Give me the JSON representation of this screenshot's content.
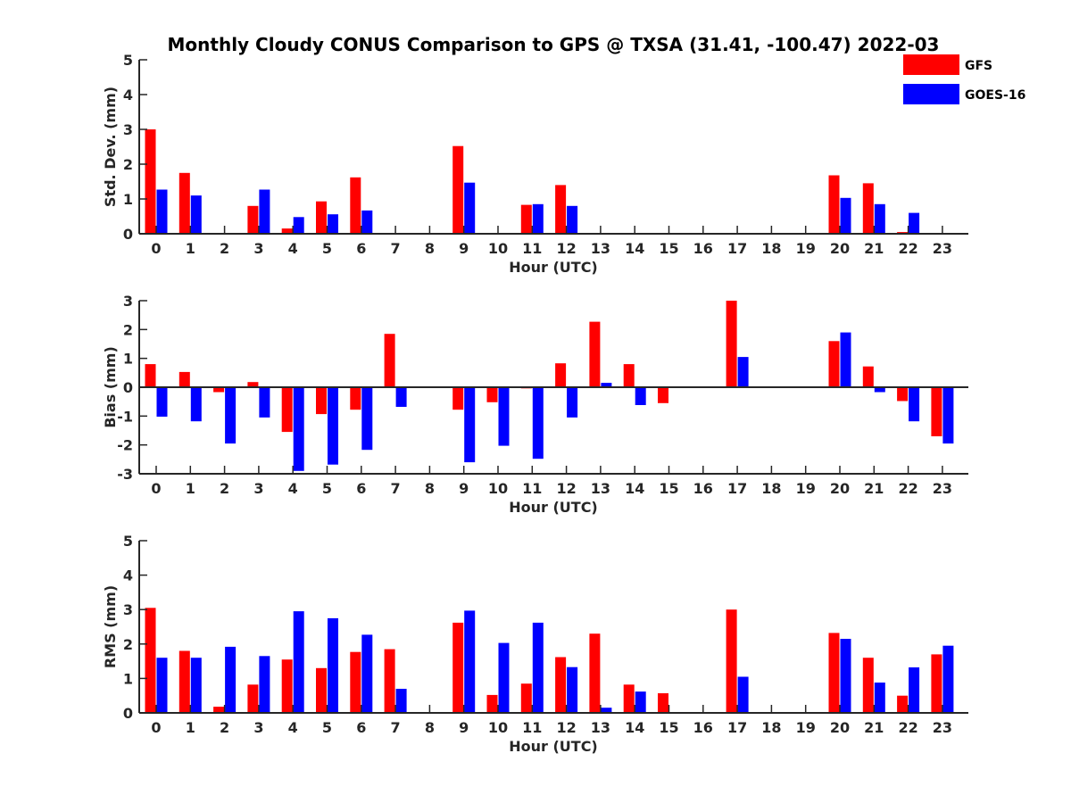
{
  "title": "Monthly Cloudy CONUS Comparison to GPS @ TXSA (31.41, -100.47) 2022-03",
  "legend": {
    "placement": "top-right",
    "items": [
      {
        "label": "GFS",
        "color": "#ff0000"
      },
      {
        "label": "GOES-16",
        "color": "#0000ff"
      }
    ]
  },
  "chart_data": [
    {
      "type": "bar",
      "ylabel": "Std. Dev. (mm)",
      "xlabel": "Hour (UTC)",
      "ylim": [
        0,
        5
      ],
      "yticks": [
        "0",
        "1",
        "2",
        "3",
        "4",
        "5"
      ],
      "categories": [
        "0",
        "1",
        "2",
        "3",
        "4",
        "5",
        "6",
        "7",
        "8",
        "9",
        "10",
        "11",
        "12",
        "13",
        "14",
        "15",
        "16",
        "17",
        "18",
        "19",
        "20",
        "21",
        "22",
        "23"
      ],
      "series": [
        {
          "name": "GFS",
          "color": "#ff0000",
          "values": [
            3.0,
            1.75,
            0,
            0.8,
            0.15,
            0.93,
            1.62,
            0,
            0,
            2.52,
            0,
            0.83,
            1.4,
            0,
            0,
            0,
            0,
            0,
            0,
            0,
            1.68,
            1.45,
            0.05,
            0
          ]
        },
        {
          "name": "GOES-16",
          "color": "#0000ff",
          "values": [
            1.27,
            1.1,
            0,
            1.27,
            0.48,
            0.56,
            0.67,
            0,
            0,
            1.47,
            0,
            0.85,
            0.8,
            0,
            0,
            0,
            0,
            0,
            0,
            0,
            1.03,
            0.85,
            0.6,
            0
          ]
        }
      ]
    },
    {
      "type": "bar",
      "ylabel": "Bias (mm)",
      "xlabel": "Hour (UTC)",
      "ylim": [
        -3,
        3
      ],
      "yticks": [
        "-3",
        "-2",
        "-1",
        "0",
        "1",
        "2",
        "3"
      ],
      "categories": [
        "0",
        "1",
        "2",
        "3",
        "4",
        "5",
        "6",
        "7",
        "8",
        "9",
        "10",
        "11",
        "12",
        "13",
        "14",
        "15",
        "16",
        "17",
        "18",
        "19",
        "20",
        "21",
        "22",
        "23"
      ],
      "series": [
        {
          "name": "GFS",
          "color": "#ff0000",
          "values": [
            0.8,
            0.53,
            -0.17,
            0.18,
            -1.55,
            -0.93,
            -0.78,
            1.85,
            0,
            -0.78,
            -0.52,
            -0.04,
            0.83,
            2.27,
            0.8,
            -0.55,
            0,
            3.0,
            0,
            0,
            1.6,
            0.72,
            -0.48,
            -1.7
          ]
        },
        {
          "name": "GOES-16",
          "color": "#0000ff",
          "values": [
            -1.02,
            -1.18,
            -1.95,
            -1.05,
            -2.9,
            -2.68,
            -2.17,
            -0.68,
            0,
            -2.6,
            -2.03,
            -2.48,
            -1.05,
            0.15,
            -0.62,
            0,
            0,
            1.05,
            0,
            0,
            1.9,
            -0.17,
            -1.18,
            -1.95
          ]
        }
      ]
    },
    {
      "type": "bar",
      "ylabel": "RMS (mm)",
      "xlabel": "Hour (UTC)",
      "ylim": [
        0,
        5
      ],
      "yticks": [
        "0",
        "1",
        "2",
        "3",
        "4",
        "5"
      ],
      "categories": [
        "0",
        "1",
        "2",
        "3",
        "4",
        "5",
        "6",
        "7",
        "8",
        "9",
        "10",
        "11",
        "12",
        "13",
        "14",
        "15",
        "16",
        "17",
        "18",
        "19",
        "20",
        "21",
        "22",
        "23"
      ],
      "series": [
        {
          "name": "GFS",
          "color": "#ff0000",
          "values": [
            3.05,
            1.8,
            0.18,
            0.82,
            1.55,
            1.3,
            1.77,
            1.85,
            0,
            2.62,
            0.52,
            0.85,
            1.62,
            2.3,
            0.82,
            0.57,
            0,
            3.0,
            0,
            0,
            2.32,
            1.6,
            0.5,
            1.7
          ]
        },
        {
          "name": "GOES-16",
          "color": "#0000ff",
          "values": [
            1.6,
            1.6,
            1.92,
            1.65,
            2.95,
            2.75,
            2.27,
            0.7,
            0,
            2.97,
            2.03,
            2.62,
            1.33,
            0.15,
            0.62,
            0,
            0,
            1.05,
            0,
            0,
            2.15,
            0.88,
            1.32,
            1.95
          ]
        }
      ]
    }
  ]
}
